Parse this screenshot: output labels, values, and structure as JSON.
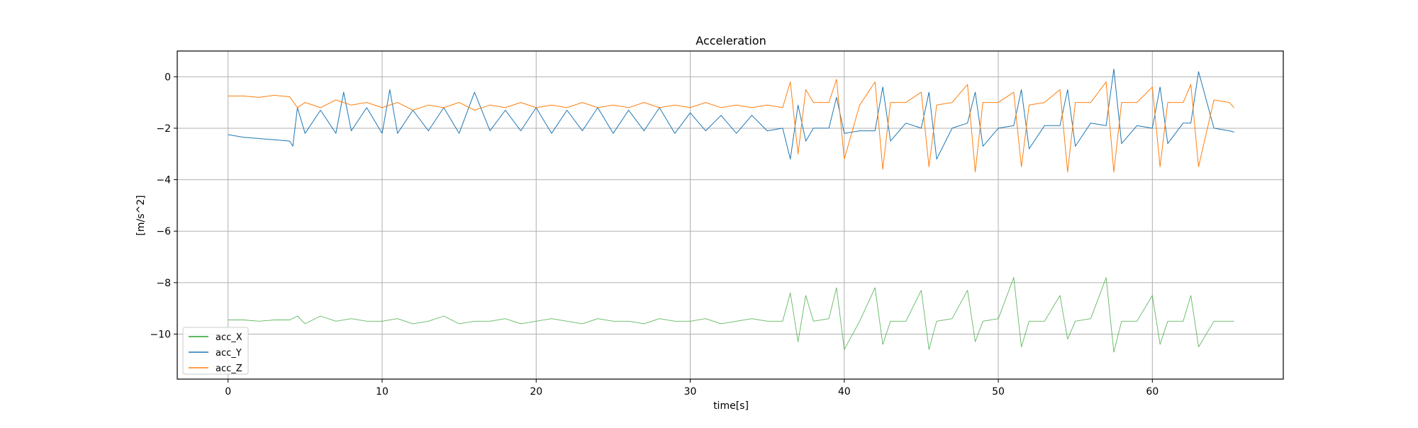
{
  "chart_data": {
    "type": "line",
    "title": "Acceleration",
    "xlabel": "time[s]",
    "ylabel": "[m/s^2]",
    "xlim": [
      -3.3,
      68.5
    ],
    "ylim": [
      -11.75,
      1.0
    ],
    "xticks": [
      0,
      10,
      20,
      30,
      40,
      50,
      60
    ],
    "yticks": [
      0,
      -2,
      -4,
      -6,
      -8,
      -10
    ],
    "xtick_labels": [
      "0",
      "10",
      "20",
      "30",
      "40",
      "50",
      "60"
    ],
    "ytick_labels": [
      "0",
      "−2",
      "−4",
      "−6",
      "−8",
      "−10"
    ],
    "grid": true,
    "legend_position": "lower-left",
    "series": [
      {
        "name": "acc_X",
        "color": "#2ca02c",
        "x": [
          0,
          1,
          2,
          3,
          4,
          4.5,
          5,
          6,
          7,
          8,
          9,
          10,
          11,
          12,
          13,
          14,
          15,
          16,
          17,
          18,
          19,
          20,
          21,
          22,
          23,
          24,
          25,
          26,
          27,
          28,
          29,
          30,
          31,
          32,
          33,
          34,
          35,
          36,
          36.5,
          37,
          37.5,
          38,
          39,
          39.5,
          40,
          41,
          42,
          42.5,
          43,
          44,
          45,
          45.5,
          46,
          47,
          48,
          48.5,
          49,
          50,
          51,
          51.5,
          52,
          53,
          54,
          54.5,
          55,
          56,
          57,
          57.5,
          58,
          59,
          60,
          60.5,
          61,
          62,
          62.5,
          63,
          64,
          65,
          65.3
        ],
        "y": [
          -9.45,
          -9.45,
          -9.5,
          -9.45,
          -9.45,
          -9.3,
          -9.6,
          -9.3,
          -9.5,
          -9.4,
          -9.5,
          -9.5,
          -9.4,
          -9.6,
          -9.5,
          -9.3,
          -9.6,
          -9.5,
          -9.5,
          -9.4,
          -9.6,
          -9.5,
          -9.4,
          -9.5,
          -9.6,
          -9.4,
          -9.5,
          -9.5,
          -9.6,
          -9.4,
          -9.5,
          -9.5,
          -9.4,
          -9.6,
          -9.5,
          -9.4,
          -9.5,
          -9.5,
          -8.4,
          -10.3,
          -8.5,
          -9.5,
          -9.4,
          -8.2,
          -10.6,
          -9.5,
          -8.2,
          -10.4,
          -9.5,
          -9.5,
          -8.3,
          -10.6,
          -9.5,
          -9.4,
          -8.3,
          -10.3,
          -9.5,
          -9.4,
          -7.8,
          -10.5,
          -9.5,
          -9.5,
          -8.5,
          -10.2,
          -9.5,
          -9.4,
          -7.8,
          -10.7,
          -9.5,
          -9.5,
          -8.5,
          -10.4,
          -9.5,
          -9.5,
          -8.5,
          -10.5,
          -9.5,
          -9.5,
          -9.5
        ]
      },
      {
        "name": "acc_Y",
        "color": "#1f77b4",
        "x": [
          0,
          1,
          2,
          3,
          4,
          4.2,
          4.5,
          5,
          6,
          7,
          7.5,
          8,
          9,
          10,
          10.5,
          11,
          12,
          13,
          14,
          15,
          16,
          17,
          18,
          19,
          20,
          21,
          22,
          23,
          24,
          25,
          26,
          27,
          28,
          29,
          30,
          31,
          32,
          33,
          34,
          35,
          36,
          36.5,
          37,
          37.5,
          38,
          39,
          39.5,
          40,
          41,
          42,
          42.5,
          43,
          44,
          45,
          45.5,
          46,
          47,
          48,
          48.5,
          49,
          50,
          51,
          51.5,
          52,
          53,
          54,
          54.5,
          55,
          56,
          57,
          57.5,
          58,
          59,
          60,
          60.5,
          61,
          62,
          62.5,
          63,
          64,
          65,
          65.3
        ],
        "y": [
          -2.25,
          -2.35,
          -2.4,
          -2.45,
          -2.5,
          -2.7,
          -1.2,
          -2.2,
          -1.3,
          -2.2,
          -0.6,
          -2.1,
          -1.2,
          -2.2,
          -0.5,
          -2.2,
          -1.3,
          -2.1,
          -1.2,
          -2.2,
          -0.6,
          -2.1,
          -1.3,
          -2.1,
          -1.2,
          -2.2,
          -1.3,
          -2.1,
          -1.2,
          -2.2,
          -1.3,
          -2.1,
          -1.2,
          -2.2,
          -1.4,
          -2.1,
          -1.5,
          -2.2,
          -1.5,
          -2.1,
          -2.0,
          -3.2,
          -1.1,
          -2.5,
          -2.0,
          -2.0,
          -0.8,
          -2.2,
          -2.1,
          -2.1,
          -0.4,
          -2.5,
          -1.8,
          -2.0,
          -0.6,
          -3.2,
          -2.0,
          -1.8,
          -0.6,
          -2.7,
          -2.0,
          -1.9,
          -0.5,
          -2.8,
          -1.9,
          -1.9,
          -0.5,
          -2.7,
          -1.8,
          -1.9,
          0.3,
          -2.6,
          -1.9,
          -2.0,
          -0.4,
          -2.6,
          -1.8,
          -1.8,
          0.2,
          -2.0,
          -2.1,
          -2.15
        ]
      },
      {
        "name": "acc_Z",
        "color": "#ff7f0e",
        "x": [
          0,
          1,
          2,
          3,
          4,
          4.5,
          5,
          6,
          7,
          8,
          9,
          10,
          11,
          12,
          13,
          14,
          15,
          16,
          17,
          18,
          19,
          20,
          21,
          22,
          23,
          24,
          25,
          26,
          27,
          28,
          29,
          30,
          31,
          32,
          33,
          34,
          35,
          36,
          36.5,
          37,
          37.5,
          38,
          39,
          39.5,
          40,
          41,
          42,
          42.5,
          43,
          44,
          45,
          45.5,
          46,
          47,
          48,
          48.5,
          49,
          50,
          51,
          51.5,
          52,
          53,
          54,
          54.5,
          55,
          56,
          57,
          57.5,
          58,
          59,
          60,
          60.5,
          61,
          62,
          62.5,
          63,
          64,
          65,
          65.3
        ],
        "y": [
          -0.75,
          -0.75,
          -0.8,
          -0.72,
          -0.78,
          -1.2,
          -1.0,
          -1.2,
          -0.9,
          -1.1,
          -1.0,
          -1.2,
          -1.0,
          -1.3,
          -1.1,
          -1.2,
          -1.0,
          -1.3,
          -1.1,
          -1.2,
          -1.0,
          -1.2,
          -1.1,
          -1.2,
          -1.0,
          -1.2,
          -1.1,
          -1.2,
          -1.0,
          -1.2,
          -1.1,
          -1.2,
          -1.0,
          -1.2,
          -1.1,
          -1.2,
          -1.1,
          -1.2,
          -0.2,
          -3.0,
          -0.5,
          -1.0,
          -1.0,
          -0.1,
          -3.2,
          -1.1,
          -0.2,
          -3.6,
          -1.0,
          -1.0,
          -0.6,
          -3.5,
          -1.1,
          -1.0,
          -0.3,
          -3.7,
          -1.0,
          -1.0,
          -0.6,
          -3.5,
          -1.1,
          -1.0,
          -0.5,
          -3.7,
          -1.0,
          -1.0,
          -0.2,
          -3.7,
          -1.0,
          -1.0,
          -0.4,
          -3.5,
          -1.0,
          -1.0,
          -0.3,
          -3.5,
          -0.9,
          -1.0,
          -1.2
        ]
      }
    ]
  }
}
